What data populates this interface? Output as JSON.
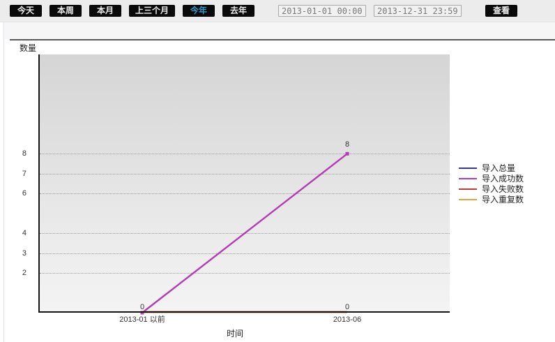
{
  "toolbar": {
    "quick_buttons": [
      {
        "id": "today",
        "label": "今天",
        "active": false
      },
      {
        "id": "this-week",
        "label": "本周",
        "active": false
      },
      {
        "id": "this-month",
        "label": "本月",
        "active": false
      },
      {
        "id": "last-3-months",
        "label": "上三个月",
        "active": false
      },
      {
        "id": "this-year",
        "label": "今年",
        "active": true
      },
      {
        "id": "last-year",
        "label": "去年",
        "active": false
      }
    ],
    "active_color": "#3399cc",
    "date_from": "2013-01-01 00:00",
    "date_to": "2013-12-31 23:59",
    "view_button": "查看"
  },
  "chart_data": {
    "type": "line",
    "title": "",
    "ylabel": "数量",
    "xlabel": "时间",
    "categories": [
      "2013-01 以前",
      "2013-06"
    ],
    "series": [
      {
        "name": "导入总量",
        "color": "#373793",
        "values": [
          0,
          0
        ]
      },
      {
        "name": "导入成功数",
        "color": "#b63ab6",
        "values": [
          0,
          8
        ]
      },
      {
        "name": "导入失败数",
        "color": "#c23939",
        "values": [
          0,
          0
        ]
      },
      {
        "name": "导入重复数",
        "color": "#e3a43f",
        "values": [
          0,
          0
        ]
      }
    ],
    "point_labels": [
      {
        "series": "导入成功数",
        "x_index": 0,
        "value": 0
      },
      {
        "series": "导入成功数",
        "x_index": 1,
        "value": 8
      },
      {
        "series": "导入总量",
        "x_index": 1,
        "value": 0
      }
    ],
    "y_ticks": [
      2,
      3,
      4,
      6,
      7,
      8
    ],
    "ylim": [
      0,
      13
    ],
    "grid": "dotted-horizontal",
    "legend_position": "right",
    "plot_background": [
      "#d5d5d5",
      "#f4f4f4"
    ]
  }
}
